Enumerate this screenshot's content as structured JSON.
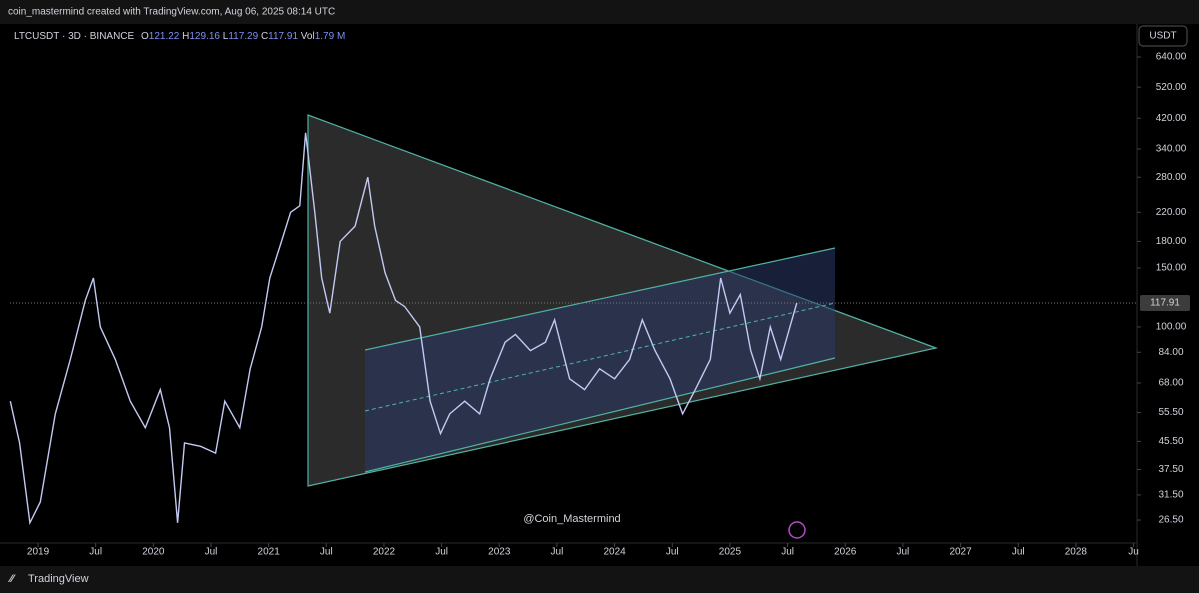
{
  "header": {
    "credit": "coin_mastermind created with TradingView.com, Aug 06, 2025 08:14 UTC"
  },
  "legend": {
    "symbol": "LTCUSDT · 3D · BINANCE",
    "open_label": "O",
    "open": "121.22",
    "high_label": "H",
    "high": "129.16",
    "low_label": "L",
    "low": "117.29",
    "close_label": "C",
    "close": "117.91",
    "volume_label": "Vol",
    "volume": "1.79 M"
  },
  "currency": "USDT",
  "watermark": "@Coin_Mastermind",
  "footer": {
    "brand": "TradingView"
  },
  "chart_data": {
    "type": "line",
    "log_scale": true,
    "color": "#c3c9f2",
    "x": [
      2018.76,
      2018.84,
      2018.93,
      2019.02,
      2019.15,
      2019.28,
      2019.41,
      2019.48,
      2019.54,
      2019.67,
      2019.8,
      2019.93,
      2020.06,
      2020.14,
      2020.21,
      2020.27,
      2020.41,
      2020.54,
      2020.62,
      2020.75,
      2020.84,
      2020.94,
      2021.01,
      2021.1,
      2021.19,
      2021.27,
      2021.32,
      2021.4,
      2021.46,
      2021.53,
      2021.62,
      2021.75,
      2021.86,
      2021.92,
      2022.01,
      2022.1,
      2022.18,
      2022.31,
      2022.4,
      2022.49,
      2022.57,
      2022.7,
      2022.83,
      2022.92,
      2023.05,
      2023.14,
      2023.27,
      2023.4,
      2023.48,
      2023.61,
      2023.74,
      2023.87,
      2024.0,
      2024.13,
      2024.24,
      2024.35,
      2024.48,
      2024.59,
      2024.7,
      2024.83,
      2024.92,
      2025.0,
      2025.09,
      2025.18,
      2025.26,
      2025.35,
      2025.44,
      2025.52,
      2025.58
    ],
    "values": [
      60,
      45,
      26,
      30,
      55,
      80,
      120,
      140,
      100,
      80,
      60,
      50,
      65,
      50,
      26,
      45,
      44,
      42,
      60,
      50,
      75,
      100,
      140,
      175,
      220,
      230,
      380,
      220,
      140,
      110,
      180,
      200,
      280,
      200,
      145,
      120,
      115,
      100,
      60,
      48,
      55,
      60,
      55,
      70,
      90,
      95,
      85,
      90,
      105,
      70,
      65,
      75,
      70,
      80,
      105,
      85,
      70,
      55,
      65,
      80,
      140,
      110,
      125,
      85,
      70,
      100,
      80,
      100,
      117.91
    ],
    "xlim": [
      2018.757,
      2028.53
    ],
    "xticks": [
      {
        "value": 2019,
        "label": "2019"
      },
      {
        "value": 2019.5,
        "label": "Jul"
      },
      {
        "value": 2020,
        "label": "2020"
      },
      {
        "value": 2020.5,
        "label": "Jul"
      },
      {
        "value": 2021,
        "label": "2021"
      },
      {
        "value": 2021.5,
        "label": "Jul"
      },
      {
        "value": 2022,
        "label": "2022"
      },
      {
        "value": 2022.5,
        "label": "Jul"
      },
      {
        "value": 2023,
        "label": "2023"
      },
      {
        "value": 2023.5,
        "label": "Jul"
      },
      {
        "value": 2024,
        "label": "2024"
      },
      {
        "value": 2024.5,
        "label": "Jul"
      },
      {
        "value": 2025,
        "label": "2025"
      },
      {
        "value": 2025.5,
        "label": "Jul"
      },
      {
        "value": 2026,
        "label": "2026"
      },
      {
        "value": 2026.5,
        "label": "Jul"
      },
      {
        "value": 2027,
        "label": "2027"
      },
      {
        "value": 2027.5,
        "label": "Jul"
      },
      {
        "value": 2028,
        "label": "2028"
      },
      {
        "value": 2028.5,
        "label": "Ju"
      }
    ],
    "ylim": [
      23.1,
      695
    ],
    "yticks": [
      {
        "value": 26.5,
        "label": "26.50"
      },
      {
        "value": 31.5,
        "label": "31.50"
      },
      {
        "value": 37.5,
        "label": "37.50"
      },
      {
        "value": 45.5,
        "label": "45.50"
      },
      {
        "value": 55.5,
        "label": "55.50"
      },
      {
        "value": 68,
        "label": "68.00"
      },
      {
        "value": 84,
        "label": "84.00"
      },
      {
        "value": 100,
        "label": "100.00"
      },
      {
        "value": 150,
        "label": "150.00"
      },
      {
        "value": 180,
        "label": "180.00"
      },
      {
        "value": 220,
        "label": "220.00"
      },
      {
        "value": 280,
        "label": "280.00"
      },
      {
        "value": 340,
        "label": "340.00"
      },
      {
        "value": 420,
        "label": "420.00"
      },
      {
        "value": 520,
        "label": "520.00"
      },
      {
        "value": 640,
        "label": "640.00"
      }
    ],
    "last_price": {
      "value": 117.91,
      "label": "117.91"
    }
  }
}
